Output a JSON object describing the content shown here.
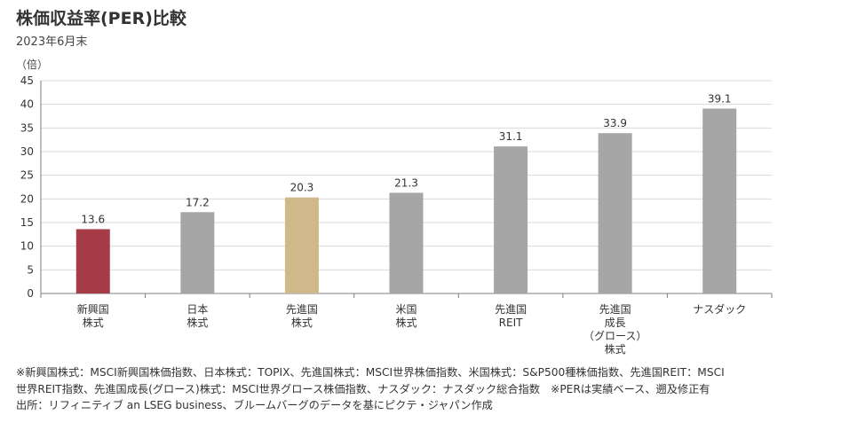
{
  "title": "株価収益率(PER)比較",
  "subtitle": "2023年6月末",
  "unit_label": "（倍）",
  "colors": {
    "highlight": "#A53C48",
    "accent": "#CFB88A",
    "default": "#A6A6A6",
    "axis": "#7F7F7F",
    "grid": "#D9D9D9"
  },
  "chart_data": {
    "type": "bar",
    "categories": [
      [
        "新興国",
        "株式"
      ],
      [
        "日本",
        "株式"
      ],
      [
        "先進国",
        "株式"
      ],
      [
        "米国",
        "株式"
      ],
      [
        "先進国",
        "REIT"
      ],
      [
        "先進国",
        "成長",
        "（グロース）",
        "株式"
      ],
      [
        "ナスダック"
      ]
    ],
    "values": [
      13.6,
      17.2,
      20.3,
      21.3,
      31.1,
      33.9,
      39.1
    ],
    "value_labels": [
      "13.6",
      "17.2",
      "20.3",
      "21.3",
      "31.1",
      "33.9",
      "39.1"
    ],
    "bar_colors": [
      "#A53C48",
      "#A6A6A6",
      "#CFB88A",
      "#A6A6A6",
      "#A6A6A6",
      "#A6A6A6",
      "#A6A6A6"
    ],
    "ylim": [
      0,
      45
    ],
    "yticks": [
      "0",
      "5",
      "10",
      "15",
      "20",
      "25",
      "30",
      "35",
      "40",
      "45"
    ],
    "grid": true,
    "legend": "none"
  },
  "notes": [
    "※新興国株式：MSCI新興国株価指数、日本株式：TOPIX、先進国株式：MSCI世界株価指数、米国株式：S&P500種株価指数、先進国REIT：MSCI",
    "世界REIT指数、先進国成長(グロース)株式：MSCI世界グロース株価指数、ナスダック：ナスダック総合指数　※PERは実績ベース、遡及修正有",
    "出所：リフィニティブ an LSEG business、ブルームバーグのデータを基にピクテ・ジャパン作成"
  ]
}
